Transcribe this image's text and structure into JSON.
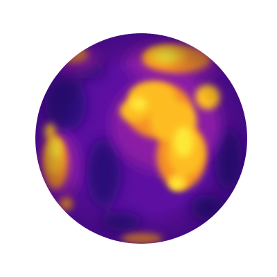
{
  "image": {
    "subject": "globe",
    "colormap": "plasma",
    "colors": {
      "background": "#ffffff",
      "base": "#5c0fa1",
      "deep": "#2a0a78",
      "mid": "#8b1fa6",
      "warm": "#e8584f",
      "orange": "#f68f26",
      "bright": "#fdbd23",
      "peak": "#fde838"
    }
  }
}
